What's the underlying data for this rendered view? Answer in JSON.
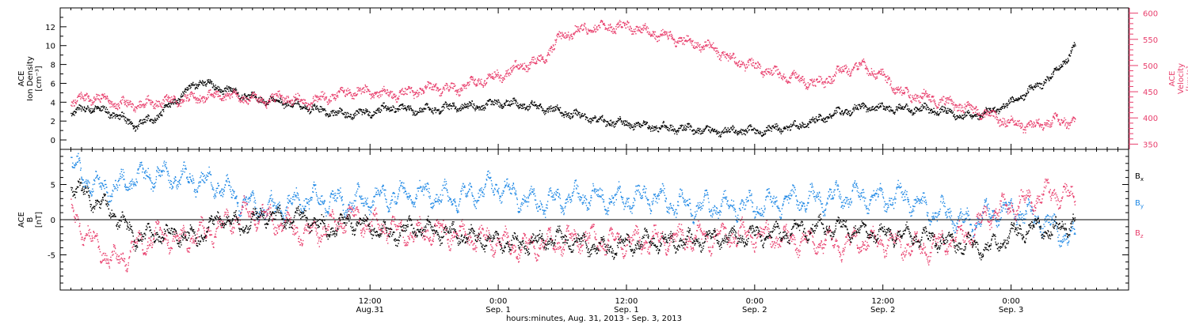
{
  "chart_data": [
    {
      "type": "scatter",
      "title": "",
      "xlabel": "hours:minutes, Aug. 31, 2013 - Sep.  3, 2013",
      "x_unit": "hours since 2013-08-31 00:00",
      "xlim": [
        -17,
        83
      ],
      "x_ticks": [
        {
          "x": 12,
          "label_time": "12:00",
          "label_date": "Aug.31"
        },
        {
          "x": 24,
          "label_time": "0:00",
          "label_date": "Sep. 1"
        },
        {
          "x": 36,
          "label_time": "12:00",
          "label_date": "Sep. 1"
        },
        {
          "x": 48,
          "label_time": "0:00",
          "label_date": "Sep. 2"
        },
        {
          "x": 60,
          "label_time": "12:00",
          "label_date": "Sep. 2"
        },
        {
          "x": 72,
          "label_time": "0:00",
          "label_date": "Sep. 3"
        }
      ],
      "left_axis": {
        "label_lines": [
          "ACE",
          "Ion Density",
          "[cm⁻³]"
        ],
        "ylim": [
          -1,
          14
        ],
        "ticks": [
          0,
          2,
          4,
          6,
          8,
          10,
          12
        ],
        "color": "#000000"
      },
      "right_axis": {
        "label_lines": [
          "ACE",
          "Velocity",
          "[km/s]"
        ],
        "ylim": [
          340,
          610
        ],
        "ticks": [
          350,
          400,
          450,
          500,
          550,
          600
        ],
        "color": "#e83e6c"
      },
      "series": [
        {
          "name": "",
          "axis": "left",
          "color": "#000000",
          "x": [
            -16,
            -14,
            -12,
            -10,
            -8,
            -6,
            -4,
            -2,
            0,
            2,
            4,
            6,
            8,
            10,
            12,
            14,
            16,
            18,
            20,
            22,
            24,
            26,
            28,
            30,
            32,
            34,
            36,
            38,
            40,
            42,
            44,
            46,
            48,
            50,
            52,
            54,
            56,
            58,
            60,
            62,
            64,
            66,
            68,
            70,
            72,
            74,
            76,
            78
          ],
          "y": [
            3.0,
            3.5,
            2.8,
            1.6,
            2.5,
            4.5,
            6.3,
            5.5,
            4.8,
            4.3,
            4.0,
            3.5,
            3.0,
            2.8,
            3.0,
            3.5,
            3.2,
            3.3,
            3.6,
            3.6,
            4.0,
            3.8,
            3.5,
            3.0,
            2.5,
            2.0,
            1.8,
            1.5,
            1.3,
            1.2,
            1.0,
            1.0,
            1.0,
            1.2,
            1.5,
            2.2,
            3.0,
            3.5,
            3.4,
            3.3,
            3.3,
            3.0,
            2.5,
            3.0,
            4.0,
            5.5,
            7.0,
            10.0
          ]
        },
        {
          "name": "",
          "axis": "right",
          "color": "#e83e6c",
          "x": [
            -16,
            -14,
            -12,
            -10,
            -8,
            -6,
            -4,
            -2,
            0,
            2,
            4,
            6,
            8,
            10,
            12,
            14,
            16,
            18,
            20,
            22,
            24,
            26,
            28,
            30,
            32,
            34,
            36,
            38,
            40,
            42,
            44,
            46,
            48,
            50,
            52,
            54,
            56,
            58,
            60,
            62,
            64,
            66,
            68,
            70,
            72,
            74,
            76,
            78
          ],
          "y": [
            435,
            440,
            430,
            425,
            430,
            435,
            440,
            445,
            440,
            435,
            440,
            430,
            440,
            450,
            450,
            445,
            450,
            460,
            455,
            470,
            480,
            500,
            510,
            560,
            570,
            575,
            575,
            565,
            555,
            545,
            535,
            510,
            500,
            485,
            475,
            465,
            490,
            500,
            480,
            445,
            440,
            430,
            420,
            405,
            390,
            385,
            395,
            395
          ]
        }
      ]
    },
    {
      "type": "scatter",
      "title": "",
      "xlabel": "hours:minutes, Aug. 31, 2013 - Sep.  3, 2013",
      "x_unit": "hours since 2013-08-31 00:00",
      "xlim": [
        -17,
        83
      ],
      "left_axis": {
        "label_lines": [
          "ACE",
          "B",
          "[nT]"
        ],
        "ylim": [
          -10,
          10
        ],
        "ticks": [
          -5,
          0,
          5
        ]
      },
      "zero_line": true,
      "series": [
        {
          "name": "Bx",
          "color": "#000000",
          "x": [
            -16,
            -14,
            -12,
            -10,
            -8,
            -6,
            -4,
            -2,
            0,
            2,
            4,
            6,
            8,
            10,
            12,
            14,
            16,
            18,
            20,
            22,
            24,
            26,
            28,
            30,
            32,
            34,
            36,
            38,
            40,
            42,
            44,
            46,
            48,
            50,
            52,
            54,
            56,
            58,
            60,
            62,
            64,
            66,
            68,
            70,
            72,
            74,
            76,
            78
          ],
          "y": [
            5.0,
            3.0,
            1.0,
            -2.5,
            -2.0,
            -2.0,
            -2.5,
            0.5,
            -1.0,
            1.0,
            0.0,
            0.5,
            -1.5,
            0.0,
            -1.0,
            -2.0,
            -1.0,
            -1.5,
            -2.0,
            -2.5,
            -3.0,
            -3.5,
            -3.0,
            -2.5,
            -3.5,
            -4.0,
            -3.5,
            -3.0,
            -3.0,
            -3.0,
            -2.5,
            -2.5,
            -2.0,
            -2.0,
            -1.5,
            -1.0,
            -1.0,
            -1.5,
            -2.0,
            -2.0,
            -2.5,
            -3.0,
            -3.5,
            -4.0,
            -2.0,
            -1.0,
            -1.5,
            0.0
          ]
        },
        {
          "name": "By",
          "color": "#1e88e5",
          "x": [
            -16,
            -14,
            -12,
            -10,
            -8,
            -6,
            -4,
            -2,
            0,
            2,
            4,
            6,
            8,
            10,
            12,
            14,
            16,
            18,
            20,
            22,
            24,
            26,
            28,
            30,
            32,
            34,
            36,
            38,
            40,
            42,
            44,
            46,
            48,
            50,
            52,
            54,
            56,
            58,
            60,
            62,
            64,
            66,
            68,
            70,
            72,
            74,
            76,
            78
          ],
          "y": [
            8.0,
            5.0,
            4.5,
            6.0,
            6.5,
            6.0,
            5.5,
            5.0,
            2.5,
            1.5,
            2.0,
            3.0,
            3.0,
            2.5,
            3.0,
            3.5,
            4.0,
            3.5,
            3.0,
            4.0,
            5.0,
            3.0,
            2.5,
            3.0,
            3.5,
            3.0,
            3.0,
            3.5,
            2.5,
            2.0,
            2.0,
            2.0,
            2.0,
            2.5,
            3.0,
            3.0,
            3.5,
            3.5,
            3.0,
            3.5,
            1.5,
            1.0,
            -0.5,
            1.0,
            1.5,
            0.5,
            -1.0,
            -3.0
          ]
        },
        {
          "name": "Bz",
          "color": "#e83e6c",
          "x": [
            -16,
            -14,
            -12,
            -10,
            -8,
            -6,
            -4,
            -2,
            0,
            2,
            4,
            6,
            8,
            10,
            12,
            14,
            16,
            18,
            20,
            22,
            24,
            26,
            28,
            30,
            32,
            34,
            36,
            38,
            40,
            42,
            44,
            46,
            48,
            50,
            52,
            54,
            56,
            58,
            60,
            62,
            64,
            66,
            68,
            70,
            72,
            74,
            76,
            78
          ],
          "y": [
            1.0,
            -3.0,
            -6.0,
            -4.0,
            -2.0,
            -3.0,
            -2.0,
            -1.0,
            1.0,
            0.5,
            -0.5,
            -2.0,
            -1.0,
            0.5,
            -0.5,
            -1.0,
            -2.0,
            -1.5,
            -2.0,
            -2.5,
            -3.0,
            -4.0,
            -3.5,
            -3.0,
            -2.5,
            -3.0,
            -3.0,
            -3.0,
            -2.5,
            -2.5,
            -2.5,
            -2.0,
            -2.0,
            -2.5,
            -3.0,
            -3.0,
            -3.5,
            -3.0,
            -3.0,
            -3.5,
            -4.0,
            -3.0,
            -2.0,
            1.0,
            2.0,
            3.0,
            4.0,
            3.0
          ]
        }
      ],
      "legend": [
        "Bx",
        "By",
        "Bz"
      ]
    }
  ]
}
